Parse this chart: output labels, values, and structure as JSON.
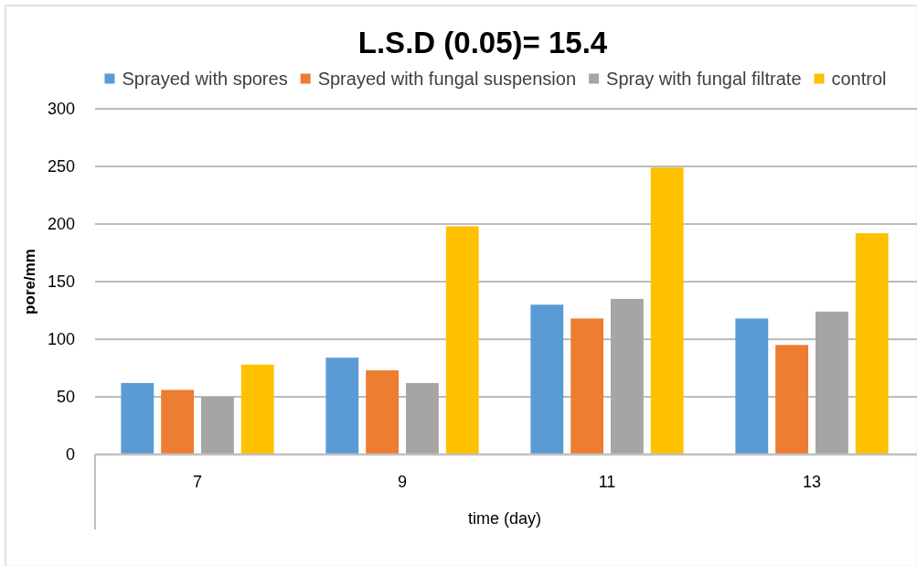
{
  "chart_data": {
    "type": "bar",
    "title": "L.S.D (0.05)= 15.4",
    "xlabel": "time (day)",
    "ylabel": "pore/mm",
    "categories": [
      "7",
      "9",
      "11",
      "13"
    ],
    "series": [
      {
        "name": "Sprayed with spores",
        "color": "#5b9bd5",
        "values": [
          62,
          84,
          130,
          118
        ]
      },
      {
        "name": "Sprayed with fungal suspension",
        "color": "#ed7d31",
        "values": [
          56,
          73,
          118,
          95
        ]
      },
      {
        "name": "Spray with fungal filtrate",
        "color": "#a5a5a5",
        "values": [
          50,
          62,
          135,
          124
        ]
      },
      {
        "name": "control",
        "color": "#ffc000",
        "values": [
          78,
          198,
          249,
          192
        ]
      }
    ],
    "ylim": [
      0,
      300
    ],
    "yticks": [
      0,
      50,
      100,
      150,
      200,
      250,
      300
    ],
    "grid": "y",
    "legend": "top"
  }
}
